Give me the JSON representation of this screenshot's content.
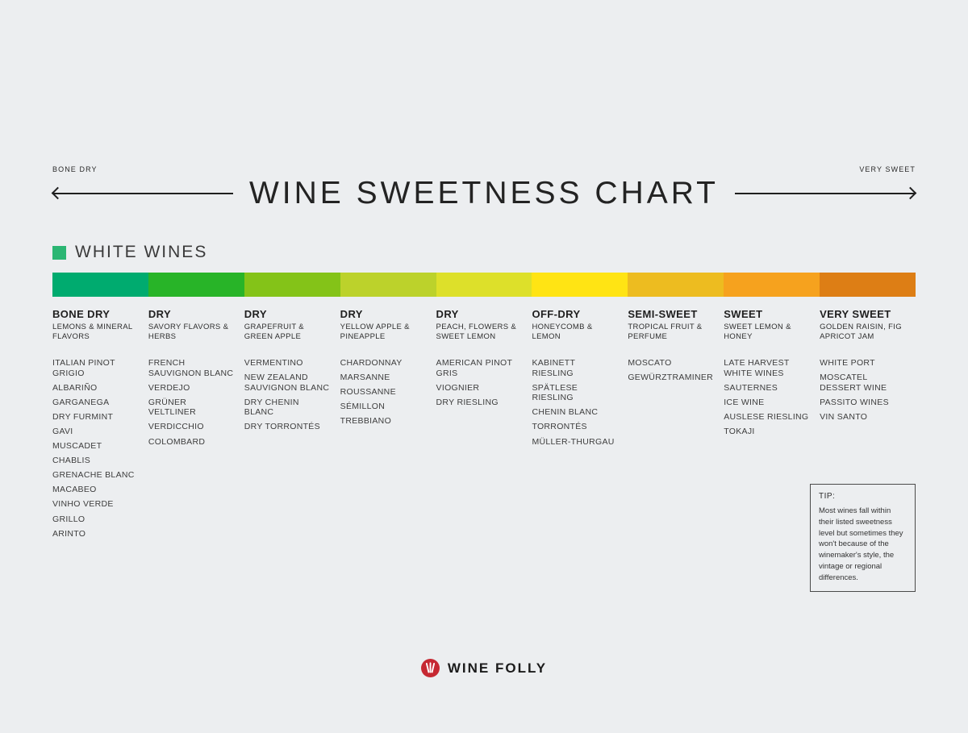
{
  "page": {
    "background": "#eceef0"
  },
  "header": {
    "left_label": "BONE DRY",
    "right_label": "VERY SWEET",
    "title": "WINE SWEETNESS CHART"
  },
  "section": {
    "label": "WHITE WINES",
    "swatch_color": "#2bb673"
  },
  "chart_data": {
    "type": "table",
    "title": "WINE SWEETNESS CHART",
    "axis": {
      "left_end": "BONE DRY",
      "right_end": "VERY SWEET"
    },
    "category": "WHITE WINES",
    "columns": [
      {
        "level": "BONE DRY",
        "flavors": "LEMONS & MINERAL FLAVORS",
        "color": "#00ab6f",
        "wines": [
          "ITALIAN PINOT GRIGIO",
          "ALBARIÑO",
          "GARGANEGA",
          "DRY FURMINT",
          "GAVI",
          "MUSCADET",
          "CHABLIS",
          "GRENACHE BLANC",
          "MACABEO",
          "VINHO VERDE",
          "GRILLO",
          "ARINTO"
        ]
      },
      {
        "level": "DRY",
        "flavors": "SAVORY FLAVORS & HERBS",
        "color": "#28b428",
        "wines": [
          "FRENCH SAUVIGNON BLANC",
          "VERDEJO",
          "GRÜNER VELTLINER",
          "VERDICCHIO",
          "COLOMBARD"
        ]
      },
      {
        "level": "DRY",
        "flavors": "GRAPEFRUIT & GREEN APPLE",
        "color": "#84c318",
        "wines": [
          "VERMENTINO",
          "NEW ZEALAND SAUVIGNON BLANC",
          "DRY CHENIN BLANC",
          "DRY TORRONTÉS"
        ]
      },
      {
        "level": "DRY",
        "flavors": "YELLOW APPLE & PINEAPPLE",
        "color": "#bcd22b",
        "wines": [
          "CHARDONNAY",
          "MARSANNE",
          "ROUSSANNE",
          "SÉMILLON",
          "TREBBIANO"
        ]
      },
      {
        "level": "DRY",
        "flavors": "PEACH, FLOWERS & SWEET LEMON",
        "color": "#dde02a",
        "wines": [
          "AMERICAN PINOT GRIS",
          "VIOGNIER",
          "DRY RIESLING"
        ]
      },
      {
        "level": "OFF-DRY",
        "flavors": "HONEYCOMB & LEMON",
        "color": "#ffe414",
        "wines": [
          "KABINETT RIESLING",
          "SPÄTLESE RIESLING",
          "CHENIN BLANC",
          "TORRONTÉS",
          "MÜLLER-THURGAU"
        ]
      },
      {
        "level": "SEMI-SWEET",
        "flavors": "TROPICAL FRUIT & PERFUME",
        "color": "#edbc20",
        "wines": [
          "MOSCATO",
          "GEWÜRZTRAMINER"
        ]
      },
      {
        "level": "SWEET",
        "flavors": "SWEET LEMON & HONEY",
        "color": "#f6a21e",
        "wines": [
          "LATE HARVEST WHITE WINES",
          "SAUTERNES",
          "ICE WINE",
          "AUSLESE RIESLING",
          "TOKAJI"
        ]
      },
      {
        "level": "VERY SWEET",
        "flavors": "GOLDEN RAISIN, FIG APRICOT JAM",
        "color": "#dd7e15",
        "wines": [
          "WHITE PORT",
          "MOSCATEL DESSERT WINE",
          "PASSITO WINES",
          "VIN SANTO"
        ]
      }
    ]
  },
  "tip": {
    "heading": "TIP:",
    "body": "Most wines fall within their listed sweetness level but sometimes they won't because of the winemaker's style, the vintage or regional differences."
  },
  "footer": {
    "brand": "WINE FOLLY",
    "logo_color": "#c62832"
  }
}
